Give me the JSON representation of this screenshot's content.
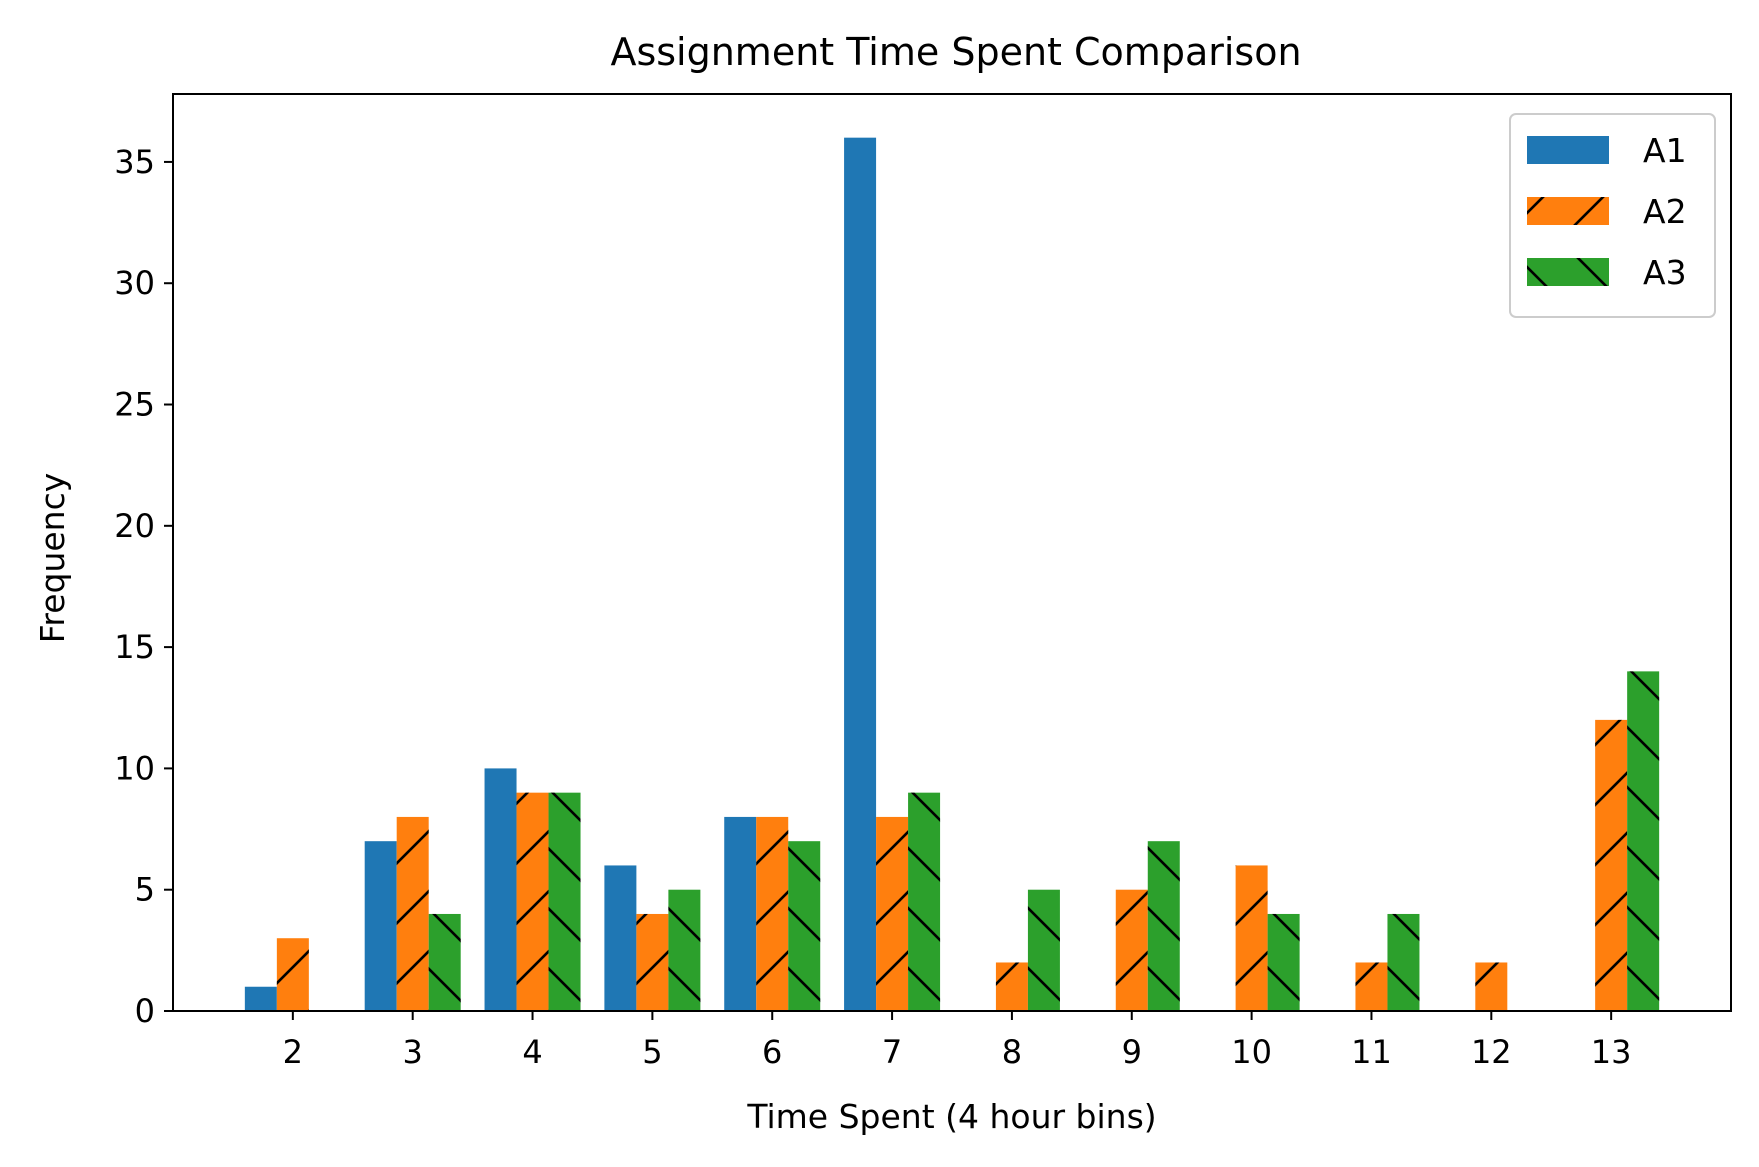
{
  "chart_data": {
    "type": "bar",
    "title": "Assignment Time Spent Comparison",
    "xlabel": "Time Spent (4 hour bins)",
    "ylabel": "Frequency",
    "categories": [
      "2",
      "3",
      "4",
      "5",
      "6",
      "7",
      "8",
      "9",
      "10",
      "11",
      "12",
      "13"
    ],
    "y_ticks": [
      0,
      5,
      10,
      15,
      20,
      25,
      30,
      35
    ],
    "ylim": [
      0,
      37.8
    ],
    "grid": false,
    "legend_position": "top-right",
    "series": [
      {
        "name": "A1",
        "color": "#1f77b4",
        "hatch": "none",
        "values": [
          1,
          7,
          10,
          6,
          8,
          36,
          0,
          0,
          0,
          0,
          0,
          0
        ]
      },
      {
        "name": "A2",
        "color": "#ff7f0e",
        "hatch": "forward-diagonal",
        "values": [
          3,
          8,
          9,
          4,
          8,
          8,
          2,
          5,
          6,
          2,
          2,
          12
        ]
      },
      {
        "name": "A3",
        "color": "#2ca02c",
        "hatch": "back-diagonal",
        "values": [
          0,
          4,
          9,
          5,
          7,
          9,
          5,
          7,
          4,
          4,
          0,
          14
        ]
      }
    ]
  }
}
